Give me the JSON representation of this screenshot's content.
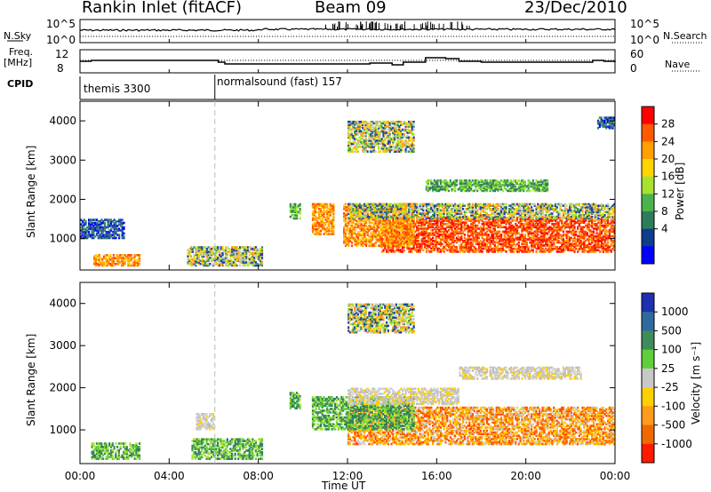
{
  "header": {
    "station": "Rankin Inlet (fitACF)",
    "beam": "Beam 09",
    "date": "23/Dec/2010"
  },
  "panels": {
    "nsky_label": "N.Sky",
    "nsearch_label": "N.Search",
    "nsky_ticks": [
      "10^5",
      "10^0"
    ],
    "nsearch_ticks": [
      "10^5",
      "10^0"
    ],
    "freq_label": "Freq.",
    "freq_unit": "[MHz]",
    "freq_ticks": [
      "12",
      "8"
    ],
    "nave_label": "Nave",
    "nave_ticks": [
      "60",
      "0"
    ],
    "cpid_label": "CPID",
    "cpid_modes": [
      "themis 3300",
      "normalsound (fast) 157"
    ]
  },
  "colors": {
    "blue": "#0000ff",
    "navy": "#1f3ea8",
    "green_dark": "#3e8c5a",
    "green_light": "#5fcf3c",
    "yellow": "#e6e635",
    "orange": "#ff9a1a",
    "orange_dark": "#ee6a00",
    "red": "#ff1a00",
    "gray": "#c8c8c8"
  },
  "chart_data": [
    {
      "type": "heatmap",
      "quantity": "Power",
      "ylabel": "Slant Range [km]",
      "xlabel": "",
      "x_ticks": [
        "00:00",
        "04:00",
        "08:00",
        "12:00",
        "16:00",
        "20:00",
        "00:00"
      ],
      "y_ticks": [
        "1000",
        "2000",
        "3000",
        "4000"
      ],
      "xlim_hours": [
        0,
        24
      ],
      "ylim_km": [
        200,
        4500
      ],
      "colorbar_label": "Power [dB]",
      "colorbar_ticks": [
        "28",
        "24",
        "20",
        "16",
        "12",
        "8",
        "4"
      ],
      "colorbar_colors": [
        "#ff0000",
        "#ff5a00",
        "#ff9f00",
        "#ffd400",
        "#a6e22e",
        "#4cb34c",
        "#2e7d5a",
        "#0f3c8c",
        "#0000ff"
      ],
      "regions": [
        {
          "t0": 13.5,
          "t1": 24,
          "r0": 650,
          "r1": 1550,
          "level": "red"
        },
        {
          "t0": 11.8,
          "t1": 15,
          "r0": 800,
          "r1": 1900,
          "level": "orange"
        },
        {
          "t0": 10.4,
          "t1": 11.4,
          "r0": 1100,
          "r1": 1900,
          "level": "orange"
        },
        {
          "t0": 12,
          "t1": 24,
          "r0": 1500,
          "r1": 1900,
          "level": "mixed"
        },
        {
          "t0": 0.6,
          "t1": 2.7,
          "r0": 300,
          "r1": 600,
          "level": "orange"
        },
        {
          "t0": 0,
          "t1": 2,
          "r0": 1000,
          "r1": 1500,
          "level": "blue"
        },
        {
          "t0": 4.8,
          "t1": 8.2,
          "r0": 300,
          "r1": 800,
          "level": "mixed"
        },
        {
          "t0": 9.4,
          "t1": 9.9,
          "r0": 1500,
          "r1": 1900,
          "level": "green"
        },
        {
          "t0": 12,
          "t1": 15,
          "r0": 3200,
          "r1": 4000,
          "level": "mixed"
        },
        {
          "t0": 15.5,
          "t1": 21,
          "r0": 2200,
          "r1": 2500,
          "level": "green"
        },
        {
          "t0": 23.2,
          "t1": 24,
          "r0": 3800,
          "r1": 4100,
          "level": "blue"
        }
      ]
    },
    {
      "type": "heatmap",
      "quantity": "Velocity",
      "ylabel": "Slant Range [km]",
      "xlabel": "Time UT",
      "x_ticks": [
        "00:00",
        "04:00",
        "08:00",
        "12:00",
        "16:00",
        "20:00",
        "00:00"
      ],
      "y_ticks": [
        "1000",
        "2000",
        "3000",
        "4000"
      ],
      "xlim_hours": [
        0,
        24
      ],
      "ylim_km": [
        200,
        4500
      ],
      "colorbar_label": "Velocity [m s⁻¹]",
      "colorbar_ticks": [
        "1000",
        "500",
        "100",
        "25",
        "-25",
        "-100",
        "-500",
        "-1000"
      ],
      "colorbar_colors": [
        "#1f2fb0",
        "#2e6a9e",
        "#3e8c5a",
        "#5fcf3c",
        "#c8c8c8",
        "#ffd000",
        "#ff9a1a",
        "#ee6a00",
        "#ff1a00"
      ],
      "regions": [
        {
          "t0": 12,
          "t1": 24,
          "r0": 650,
          "r1": 1550,
          "level": "orange"
        },
        {
          "t0": 10.4,
          "t1": 15,
          "r0": 1000,
          "r1": 1800,
          "level": "green"
        },
        {
          "t0": 12,
          "t1": 17,
          "r0": 1600,
          "r1": 2000,
          "level": "gray"
        },
        {
          "t0": 0.5,
          "t1": 2.7,
          "r0": 300,
          "r1": 700,
          "level": "green"
        },
        {
          "t0": 5,
          "t1": 8.2,
          "r0": 300,
          "r1": 800,
          "level": "green"
        },
        {
          "t0": 5.2,
          "t1": 6,
          "r0": 1000,
          "r1": 1400,
          "level": "gray"
        },
        {
          "t0": 9.4,
          "t1": 9.9,
          "r0": 1500,
          "r1": 1900,
          "level": "green"
        },
        {
          "t0": 12,
          "t1": 15,
          "r0": 3300,
          "r1": 4000,
          "level": "mixed"
        },
        {
          "t0": 17,
          "t1": 22.5,
          "r0": 2200,
          "r1": 2500,
          "level": "gray"
        }
      ]
    }
  ]
}
